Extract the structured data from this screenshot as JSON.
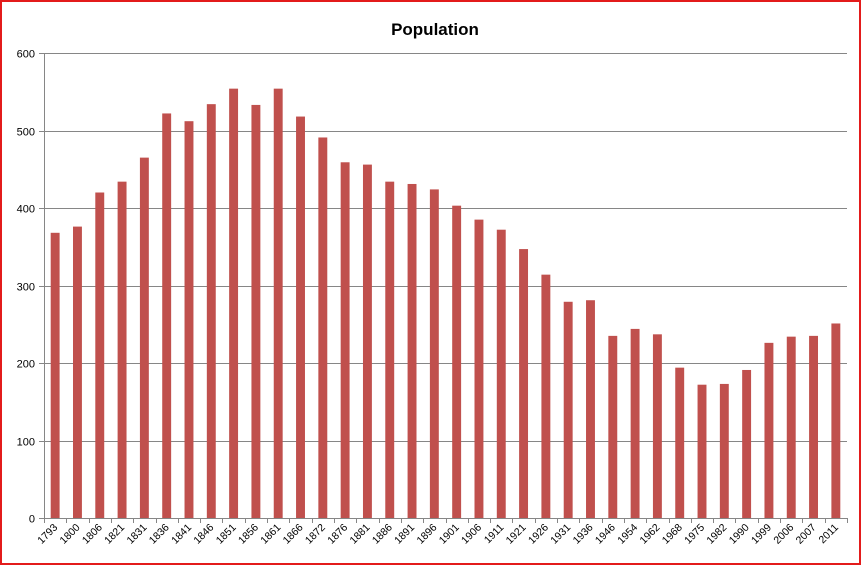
{
  "chart_data": {
    "type": "bar",
    "title": "Population",
    "xlabel": "",
    "ylabel": "",
    "ylim": [
      0,
      600
    ],
    "yticks": [
      0,
      100,
      200,
      300,
      400,
      500,
      600
    ],
    "grid": true,
    "legend": "none",
    "bar_color": "#c0504d",
    "categories": [
      "1793",
      "1800",
      "1806",
      "1821",
      "1831",
      "1836",
      "1841",
      "1846",
      "1851",
      "1856",
      "1861",
      "1866",
      "1872",
      "1876",
      "1881",
      "1886",
      "1891",
      "1896",
      "1901",
      "1906",
      "1911",
      "1921",
      "1926",
      "1931",
      "1936",
      "1946",
      "1954",
      "1962",
      "1968",
      "1975",
      "1982",
      "1990",
      "1999",
      "2006",
      "2007",
      "2011"
    ],
    "values": [
      368,
      376,
      420,
      434,
      465,
      522,
      512,
      534,
      554,
      533,
      554,
      518,
      491,
      459,
      456,
      434,
      431,
      424,
      403,
      385,
      372,
      347,
      314,
      279,
      281,
      235,
      244,
      237,
      194,
      172,
      173,
      191,
      226,
      234,
      235,
      251
    ]
  },
  "colors": {
    "frame_border": "#e31b1b",
    "gridline": "#868686",
    "axis": "#868686"
  }
}
